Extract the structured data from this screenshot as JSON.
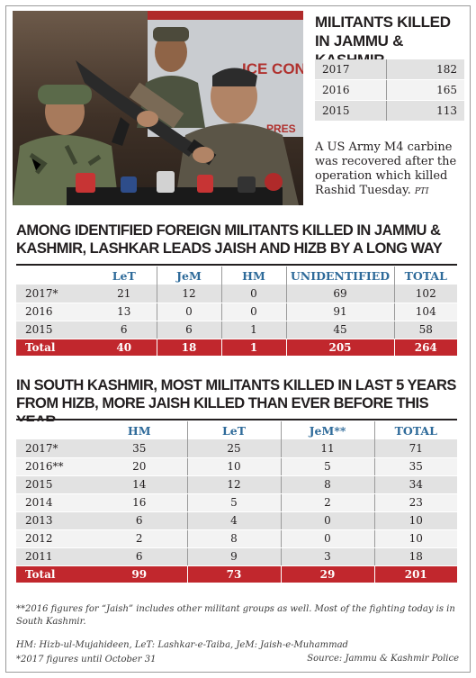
{
  "photo": {
    "alt_icon": "press-conference-photo",
    "sign_text": "ICE CONT",
    "sign_text2": "PRES"
  },
  "killed_summary": {
    "title": "MILITANTS KILLED IN JAMMU & KASHMIR",
    "rows": [
      {
        "year": "2017",
        "value": "182"
      },
      {
        "year": "2016",
        "value": "165"
      },
      {
        "year": "2015",
        "value": "113"
      }
    ]
  },
  "caption": {
    "text": "A US Army M4 carbine was recovered after the operation which killed Rashid Tuesday.",
    "credit": "PTI"
  },
  "section1": {
    "title": "AMONG IDENTIFIED FOREIGN MILITANTS KILLED IN JAMMU & KASHMIR, LASHKAR LEADS JAISH AND HIZB BY A LONG WAY",
    "headers": [
      "",
      "LeT",
      "JeM",
      "HM",
      "UNIDENTIFIED",
      "TOTAL"
    ],
    "rows": [
      [
        "2017*",
        "21",
        "12",
        "0",
        "69",
        "102"
      ],
      [
        "2016",
        "13",
        "0",
        "0",
        "91",
        "104"
      ],
      [
        "2015",
        "6",
        "6",
        "1",
        "45",
        "58"
      ]
    ],
    "total": [
      "Total",
      "40",
      "18",
      "1",
      "205",
      "264"
    ]
  },
  "section2": {
    "title": "IN SOUTH KASHMIR, MOST MILITANTS KILLED IN LAST 5 YEARS FROM HIZB, MORE JAISH KILLED THAN EVER BEFORE THIS YEAR",
    "headers": [
      "",
      "HM",
      "LeT",
      "JeM**",
      "TOTAL"
    ],
    "rows": [
      [
        "2017*",
        "35",
        "25",
        "11",
        "71"
      ],
      [
        "2016**",
        "20",
        "10",
        "5",
        "35"
      ],
      [
        "2015",
        "14",
        "12",
        "8",
        "34"
      ],
      [
        "2014",
        "16",
        "5",
        "2",
        "23"
      ],
      [
        "2013",
        "6",
        "4",
        "0",
        "10"
      ],
      [
        "2012",
        "2",
        "8",
        "0",
        "10"
      ],
      [
        "2011",
        "6",
        "9",
        "3",
        "18"
      ]
    ],
    "total": [
      "Total",
      "99",
      "73",
      "29",
      "201"
    ]
  },
  "footnotes": {
    "note1": "**2016 figures for “Jaish” includes other militant groups as well. Most of the fighting today is in South Kashmir.",
    "note2": "HM: Hizb-ul-Mujahideen, LeT: Lashkar-e-Taiba, JeM: Jaish-e-Muhammad",
    "note3": "*2017 figures until October 31",
    "source": "Source: Jammu & Kashmir Police"
  },
  "colors": {
    "header_blue": "#2f6b9a",
    "total_red": "#c1272d",
    "row_gray": "#e2e2e2"
  }
}
